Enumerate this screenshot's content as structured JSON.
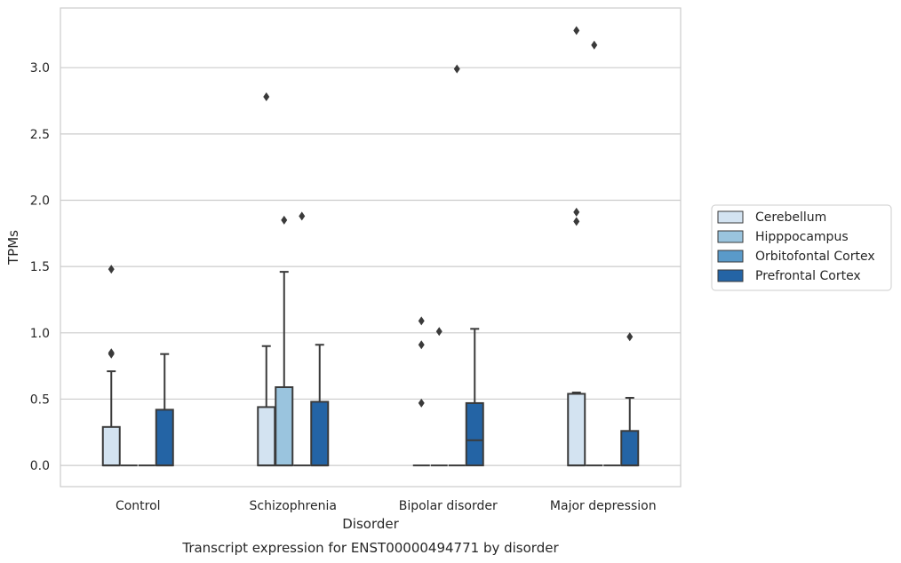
{
  "chart_data": {
    "type": "box",
    "title": "Transcript expression for ENST00000494771 by disorder",
    "xlabel": "Disorder",
    "ylabel": "TPMs",
    "ylim": [
      -0.16,
      3.45
    ],
    "yticks": [
      "0.0",
      "0.5",
      "1.0",
      "1.5",
      "2.0",
      "2.5",
      "3.0"
    ],
    "categories": [
      "Control",
      "Schizophrenia",
      "Bipolar disorder",
      "Major depression"
    ],
    "grid": "horizontal",
    "legend_position": "right",
    "series": [
      {
        "name": "Cerebellum",
        "color": "#d3e3f1",
        "boxes": [
          {
            "q1": 0.0,
            "median": 0.0,
            "q3": 0.29,
            "whisker_low": 0.0,
            "whisker_high": 0.71,
            "outliers": [
              1.48,
              0.85,
              0.84
            ]
          },
          {
            "q1": 0.0,
            "median": 0.0,
            "q3": 0.44,
            "whisker_low": 0.0,
            "whisker_high": 0.9,
            "outliers": [
              2.78
            ]
          },
          {
            "q1": 0.0,
            "median": 0.0,
            "q3": 0.0,
            "whisker_low": 0.0,
            "whisker_high": 0.0,
            "outliers": [
              1.09,
              0.91,
              0.47
            ]
          },
          {
            "q1": 0.0,
            "median": 0.0,
            "q3": 0.54,
            "whisker_low": 0.0,
            "whisker_high": 0.55,
            "outliers": [
              3.28,
              1.91,
              1.84
            ]
          }
        ]
      },
      {
        "name": "Hipppocampus",
        "color": "#9ac4de",
        "boxes": [
          {
            "q1": 0.0,
            "median": 0.0,
            "q3": 0.0,
            "whisker_low": 0.0,
            "whisker_high": 0.0,
            "outliers": []
          },
          {
            "q1": 0.0,
            "median": 0.0,
            "q3": 0.59,
            "whisker_low": 0.0,
            "whisker_high": 1.46,
            "outliers": [
              1.85
            ]
          },
          {
            "q1": 0.0,
            "median": 0.0,
            "q3": 0.0,
            "whisker_low": 0.0,
            "whisker_high": 0.0,
            "outliers": [
              1.01
            ]
          },
          {
            "q1": 0.0,
            "median": 0.0,
            "q3": 0.0,
            "whisker_low": 0.0,
            "whisker_high": 0.0,
            "outliers": [
              3.17
            ]
          }
        ]
      },
      {
        "name": "Orbitofontal Cortex",
        "color": "#5a9ac9",
        "boxes": [
          {
            "q1": 0.0,
            "median": 0.0,
            "q3": 0.0,
            "whisker_low": 0.0,
            "whisker_high": 0.0,
            "outliers": []
          },
          {
            "q1": 0.0,
            "median": 0.0,
            "q3": 0.0,
            "whisker_low": 0.0,
            "whisker_high": 0.0,
            "outliers": [
              1.88
            ]
          },
          {
            "q1": 0.0,
            "median": 0.0,
            "q3": 0.0,
            "whisker_low": 0.0,
            "whisker_high": 0.0,
            "outliers": [
              2.99
            ]
          },
          {
            "q1": 0.0,
            "median": 0.0,
            "q3": 0.0,
            "whisker_low": 0.0,
            "whisker_high": 0.0,
            "outliers": []
          }
        ]
      },
      {
        "name": "Prefrontal Cortex",
        "color": "#2464a5",
        "boxes": [
          {
            "q1": 0.0,
            "median": 0.0,
            "q3": 0.42,
            "whisker_low": 0.0,
            "whisker_high": 0.84,
            "outliers": []
          },
          {
            "q1": 0.0,
            "median": 0.0,
            "q3": 0.48,
            "whisker_low": 0.0,
            "whisker_high": 0.91,
            "outliers": []
          },
          {
            "q1": 0.0,
            "median": 0.19,
            "q3": 0.47,
            "whisker_low": 0.0,
            "whisker_high": 1.03,
            "outliers": []
          },
          {
            "q1": 0.0,
            "median": 0.0,
            "q3": 0.26,
            "whisker_low": 0.0,
            "whisker_high": 0.51,
            "outliers": [
              0.97
            ]
          }
        ]
      }
    ]
  }
}
